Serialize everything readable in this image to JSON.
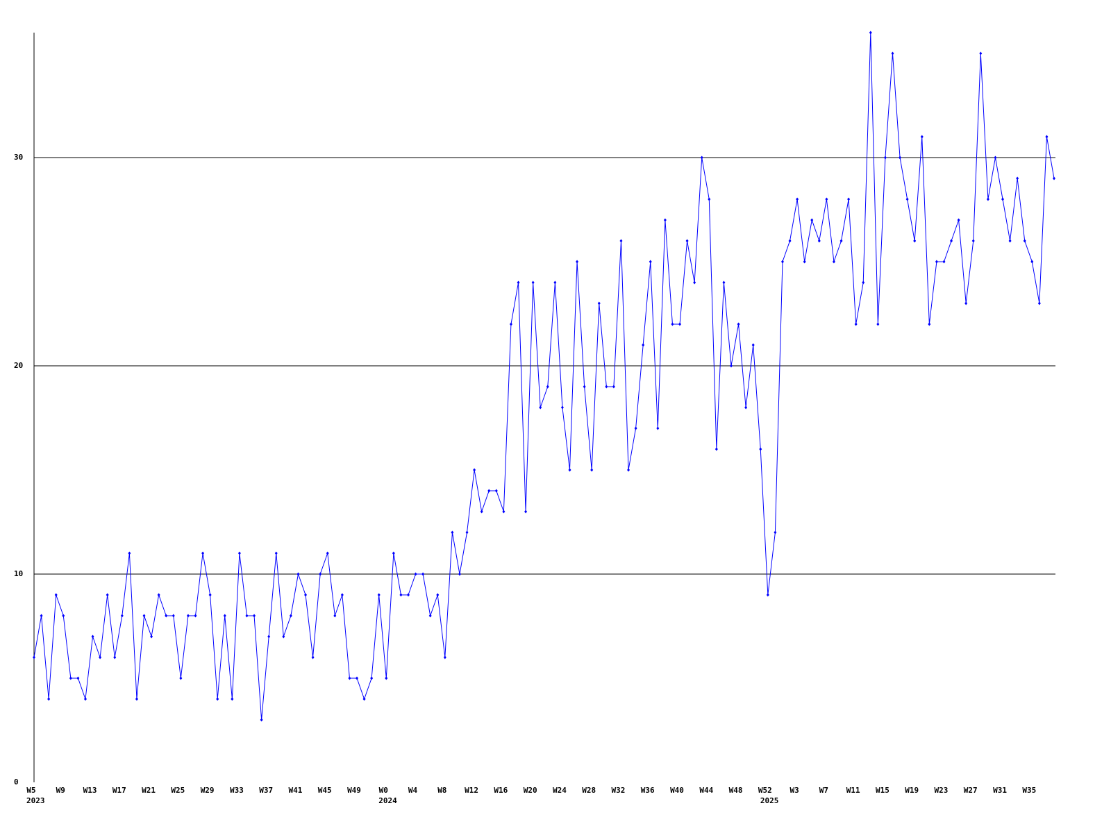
{
  "chart_data": {
    "type": "line",
    "categories": [
      "W5",
      null,
      null,
      null,
      "W9",
      null,
      null,
      null,
      "W13",
      null,
      null,
      null,
      "W17",
      null,
      null,
      null,
      "W21",
      null,
      null,
      null,
      "W25",
      null,
      null,
      null,
      "W29",
      null,
      null,
      null,
      "W33",
      null,
      null,
      null,
      "W37",
      null,
      null,
      null,
      "W41",
      null,
      null,
      null,
      "W45",
      null,
      null,
      null,
      "W49",
      null,
      null,
      null,
      "W0",
      null,
      null,
      null,
      "W4",
      null,
      null,
      null,
      "W8",
      null,
      null,
      null,
      "W12",
      null,
      null,
      null,
      "W16",
      null,
      null,
      null,
      "W20",
      null,
      null,
      null,
      "W24",
      null,
      null,
      null,
      "W28",
      null,
      null,
      null,
      "W32",
      null,
      null,
      null,
      "W36",
      null,
      null,
      null,
      "W40",
      null,
      null,
      null,
      "W44",
      null,
      null,
      null,
      "W48",
      null,
      null,
      null,
      "W52",
      null,
      null,
      null,
      "W3",
      null,
      null,
      null,
      "W7",
      null,
      null,
      null,
      "W11",
      null,
      null,
      null,
      "W15",
      null,
      null,
      null,
      "W19",
      null,
      null,
      null,
      "W23",
      null,
      null,
      null,
      "W27",
      null,
      null,
      null,
      "W31",
      null,
      null,
      null,
      "W35",
      null,
      null,
      null
    ],
    "year_labels": [
      "2023",
      null,
      null,
      null,
      null,
      null,
      null,
      null,
      null,
      null,
      null,
      null,
      null,
      null,
      null,
      null,
      null,
      null,
      null,
      null,
      null,
      null,
      null,
      null,
      null,
      null,
      null,
      null,
      null,
      null,
      null,
      null,
      null,
      null,
      null,
      null,
      null,
      null,
      null,
      null,
      null,
      null,
      null,
      null,
      null,
      null,
      null,
      null,
      "2024",
      null,
      null,
      null,
      null,
      null,
      null,
      null,
      null,
      null,
      null,
      null,
      null,
      null,
      null,
      null,
      null,
      null,
      null,
      null,
      null,
      null,
      null,
      null,
      null,
      null,
      null,
      null,
      null,
      null,
      null,
      null,
      null,
      null,
      null,
      null,
      null,
      null,
      null,
      null,
      null,
      null,
      null,
      null,
      null,
      null,
      null,
      null,
      null,
      null,
      null,
      null,
      "2025",
      null,
      null,
      null,
      null,
      null,
      null,
      null,
      null,
      null,
      null,
      null,
      null,
      null,
      null,
      null,
      null,
      null,
      null,
      null,
      null,
      null,
      null,
      null,
      null,
      null,
      null,
      null,
      null,
      null,
      null,
      null,
      null,
      null,
      null,
      null,
      null,
      null,
      null,
      null
    ],
    "series": [
      {
        "color": "#0000ff",
        "values": [
          6,
          8,
          4,
          9,
          8,
          5,
          5,
          4,
          7,
          6,
          9,
          6,
          8,
          11,
          4,
          8,
          7,
          9,
          8,
          8,
          5,
          8,
          8,
          11,
          9,
          4,
          8,
          4,
          11,
          8,
          8,
          3,
          7,
          11,
          7,
          8,
          10,
          9,
          6,
          10,
          11,
          8,
          9,
          5,
          5,
          4,
          5,
          9,
          5,
          11,
          9,
          9,
          10,
          10,
          8,
          9,
          6,
          12,
          10,
          12,
          15,
          13,
          14,
          14,
          13,
          22,
          24,
          13,
          24,
          18,
          19,
          24,
          18,
          15,
          25,
          19,
          15,
          23,
          19,
          19,
          26,
          15,
          17,
          21,
          25,
          17,
          27,
          22,
          22,
          26,
          24,
          30,
          28,
          16,
          24,
          20,
          22,
          18,
          21,
          16,
          9,
          12,
          25,
          26,
          28,
          25,
          27,
          26,
          28,
          25,
          26,
          28,
          22,
          24,
          36,
          22,
          30,
          35,
          30,
          28,
          26,
          31,
          22,
          25,
          25,
          26,
          27,
          23,
          26,
          35,
          28,
          30,
          28,
          26,
          29,
          26,
          25,
          23,
          31,
          29
        ]
      }
    ],
    "ylim": [
      0,
      36
    ],
    "yticks": [
      0,
      10,
      20,
      30
    ],
    "grid": true
  }
}
